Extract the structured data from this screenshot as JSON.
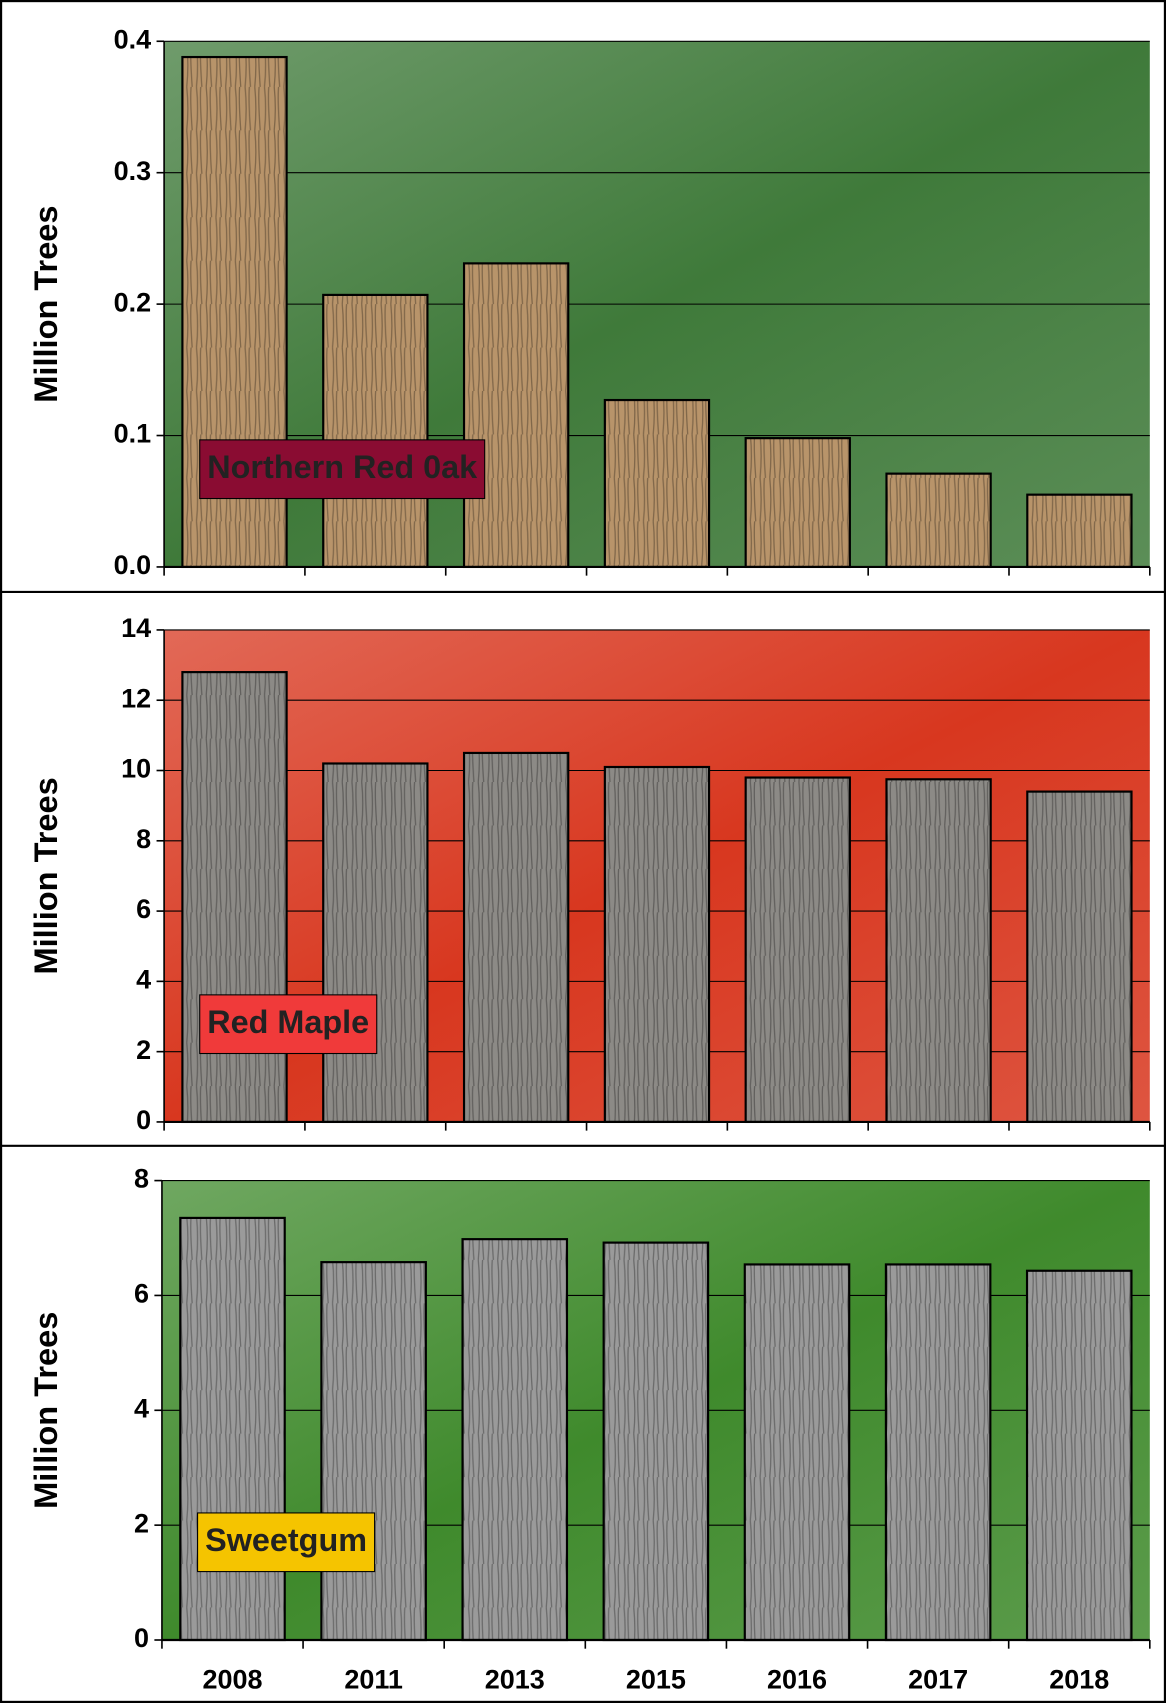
{
  "chart_data": [
    {
      "type": "bar",
      "label": "Northern Red 0ak",
      "label_color": "#8a0c32",
      "y_label": "Million Trees",
      "values": [
        0.388,
        0.207,
        0.231,
        0.127,
        0.098,
        0.071,
        0.055
      ],
      "color": "#b8946a",
      "background": "#3f7a3a",
      "ylim": [
        0,
        0.4
      ],
      "yticks": [
        {
          "value": 0,
          "label": "0.0"
        },
        0.1,
        0.2,
        0.3,
        0.4
      ],
      "grid": true
    },
    {
      "type": "bar",
      "label": "Red Maple",
      "label_color": "#f03a3a",
      "y_label": "Million Trees",
      "values": [
        12.8,
        10.2,
        10.5,
        10.1,
        9.8,
        9.75,
        9.4
      ],
      "color": "#8c8a86",
      "background": "#d8371f",
      "ylim": [
        0,
        14
      ],
      "yticks": [
        0,
        2,
        4,
        6,
        8,
        10,
        12,
        14
      ],
      "grid": true
    },
    {
      "type": "bar",
      "label": "Sweetgum",
      "label_color": "#f5c400",
      "y_label": "Million Trees",
      "categories": [
        "2008",
        "2011",
        "2013",
        "2015",
        "2016",
        "2017",
        "2018"
      ],
      "values": [
        7.35,
        6.58,
        6.98,
        6.92,
        6.54,
        6.54,
        6.43
      ],
      "color": "#9a9a9a",
      "background": "#3f8a2c",
      "ylim": [
        0,
        8
      ],
      "yticks": [
        0,
        2,
        4,
        6,
        8
      ],
      "grid": true
    }
  ]
}
